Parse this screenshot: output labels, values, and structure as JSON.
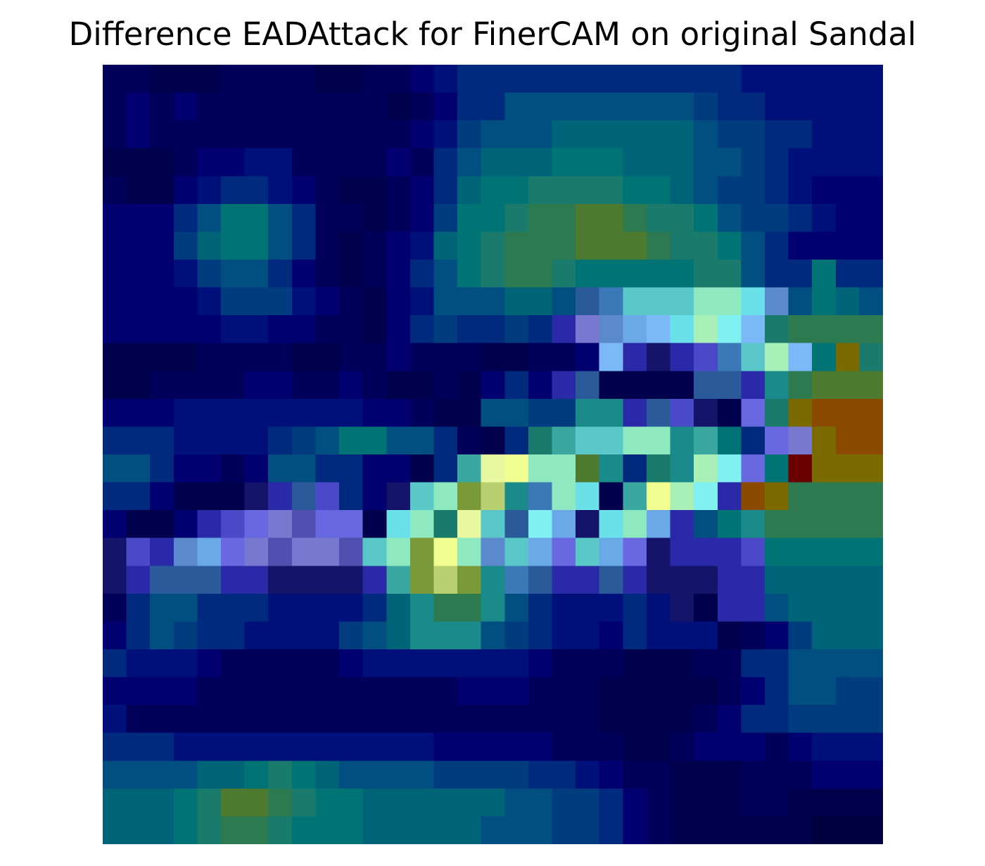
{
  "chart_data": {
    "type": "heatmap",
    "title": "Difference EADAttack for FinerCAM on original Sandal",
    "xlabel": "",
    "ylabel": "",
    "axes": "off",
    "grid": false,
    "colormap": "jet heatmap overlaid on image",
    "palette": {
      "a": "#000040",
      "b": "#00004c",
      "c": "#00005a",
      "d": "#000070",
      "e": "#00107a",
      "f": "#002a7e",
      "g": "#003c7e",
      "h": "#004f80",
      "i": "#006478",
      "j": "#007474",
      "k": "#1a7a6c",
      "l": "#2e7a50",
      "m": "#4e7a30",
      "n": "#7a6a00",
      "o": "#8a4a00",
      "p": "#6a0000",
      "q": "#1a8a8a",
      "r": "#3aa8a0",
      "s": "#5ac8c8",
      "t": "#6ae0e8",
      "u": "#80f0f0",
      "v": "#8ee8c0",
      "w": "#a8f0b8",
      "x": "#e8f8a0",
      "y": "#f0ff90",
      "z": "#b8d070",
      "A": "#7a9a3a",
      "B": "#5a8acc",
      "C": "#6aa8e8",
      "D": "#7ab8f8",
      "E": "#6868e0",
      "F": "#4a4ac8",
      "G": "#2a2aa8",
      "H": "#14146a",
      "I": "#2a5a9a",
      "J": "#3a78b8",
      "K": "#7878d0",
      "L": "#5050b0"
    },
    "rows": [
      "ccbbbccccbbccdeffffffffffffeeeeee",
      "cdcdccccccccbcdffhhhhhhhhgffeeeee",
      "cdcccccccccccdeghhhiiiiiihggffeee",
      "bbbcddeeccccdcfhiiijjjiiihhgfeeee",
      "cbbdeffedcbbcdfijjkkkkjjihggfeddd",
      "dddfhjjhfccbcdgjjkllmmlkkjhggfedd",
      "dddgijjhfcbcdeijklllmmmlkkjhfddd",
      "dddeghhfdcbcdfhjkllkjjjjjkkhffjff",
      "ddddegggedcbdehhhiihIJsssvvtBhjih",
      "dddddeeddccbdfgffgfGKBCDtwuDkll",
      "bbbbccccbbccdcccbbccdDGHGFJswDjnk",
      "bbccccddccdcbbcbdfdGIbbbbIIGqlmm",
      "dddeeeeeeeeddcbbhhggqqGIFHbEkno",
      "fffeeeefghjjhhfcbfkrssvvqrjfEKnoo",
      "hhfddcdhhffddbfrxyvvmqfkqwuEjpn",
      "ffdbbbHGIFfdHsvAzqJvtbrywuGonl",
      "dbbdGFEKLEEbtvkxsIuCHtvCGhjql",
      "HFGBCEKLKKLsvAyvBsCEsCEHGGGFj",
      "HGIIIGGHHHHGrAzAqJIGGIGHHHGGi",
      "cfhhfffeeeefiqllqhfeeefeHbGGhi",
      "dfhgffeeeeghiqqqhgfeedfeeebcdgi",
      "feeedcccccdeeeeeeedcccbbbccffhh",
      "ddddcccccccccccdddcccbbbbbcdfhhg",
      "eccccccccccccccccccccbbbbcdffgg",
      "fffeeeeeeeeeeedddddcccbbcdddcde",
      "hhhhiijkjihhhhggggffedccbbbcccd",
      "iiijkmmlkjjiiiiiihhggfdcbbbccbb",
      "iiijkllkjjjiiiiihhhggfdcbbbbbba"
    ]
  }
}
